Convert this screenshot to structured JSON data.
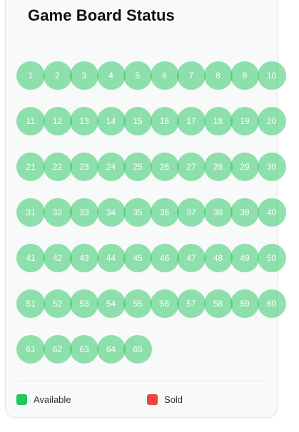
{
  "title": "Game Board Status",
  "board": {
    "numbers": [
      1,
      2,
      3,
      4,
      5,
      6,
      7,
      8,
      9,
      10,
      11,
      12,
      13,
      14,
      15,
      16,
      17,
      18,
      19,
      20,
      21,
      22,
      23,
      24,
      25,
      26,
      27,
      28,
      29,
      30,
      31,
      32,
      33,
      34,
      35,
      36,
      37,
      38,
      39,
      40,
      41,
      42,
      43,
      44,
      45,
      46,
      47,
      48,
      49,
      50,
      51,
      52,
      53,
      54,
      55,
      56,
      57,
      58,
      59,
      60,
      61,
      62,
      63,
      64,
      65
    ],
    "status": "available"
  },
  "legend": {
    "available": {
      "label": "Available",
      "color": "#22c55e"
    },
    "sold": {
      "label": "Sold",
      "color": "#ef4444"
    }
  },
  "colors": {
    "available_cell": "rgba(34,197,94,0.5)",
    "sold_cell": "rgba(239,68,68,0.5)"
  }
}
